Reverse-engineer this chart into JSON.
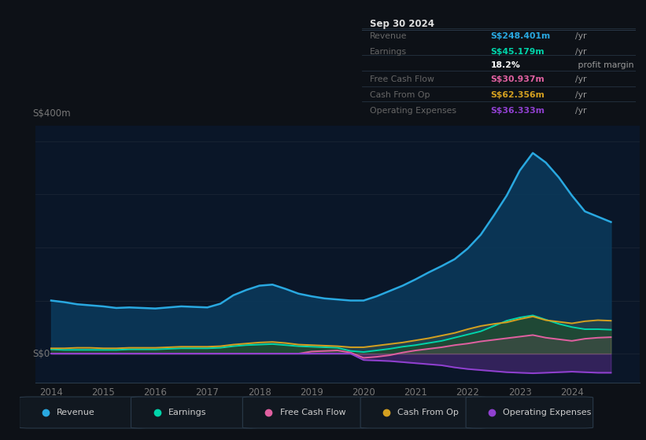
{
  "bg_color": "#0d1117",
  "plot_bg_color": "#0a1628",
  "grid_color": "#1a2535",
  "ylabel": "S$400m",
  "y0_label": "S$0",
  "years": [
    2014.0,
    2014.25,
    2014.5,
    2014.75,
    2015.0,
    2015.25,
    2015.5,
    2015.75,
    2016.0,
    2016.25,
    2016.5,
    2016.75,
    2017.0,
    2017.25,
    2017.5,
    2017.75,
    2018.0,
    2018.25,
    2018.5,
    2018.75,
    2019.0,
    2019.25,
    2019.5,
    2019.75,
    2020.0,
    2020.25,
    2020.5,
    2020.75,
    2021.0,
    2021.25,
    2021.5,
    2021.75,
    2022.0,
    2022.25,
    2022.5,
    2022.75,
    2023.0,
    2023.25,
    2023.5,
    2023.75,
    2024.0,
    2024.25,
    2024.5,
    2024.75
  ],
  "revenue": [
    100,
    97,
    93,
    91,
    89,
    86,
    87,
    86,
    85,
    87,
    89,
    88,
    87,
    94,
    110,
    120,
    128,
    130,
    122,
    113,
    108,
    104,
    102,
    100,
    100,
    108,
    118,
    128,
    140,
    153,
    165,
    178,
    198,
    224,
    260,
    298,
    345,
    378,
    360,
    332,
    298,
    268,
    258,
    248
  ],
  "earnings": [
    8,
    7,
    7,
    7,
    7,
    7,
    8,
    8,
    8,
    9,
    10,
    10,
    10,
    11,
    14,
    16,
    17,
    18,
    16,
    14,
    13,
    12,
    11,
    5,
    3,
    6,
    9,
    13,
    16,
    20,
    24,
    30,
    36,
    42,
    52,
    62,
    68,
    72,
    64,
    56,
    50,
    46,
    46,
    45
  ],
  "free_cash_flow": [
    0,
    0,
    0,
    0,
    0,
    0,
    0,
    0,
    0,
    0,
    0,
    0,
    0,
    0,
    0,
    0,
    0,
    0,
    0,
    0,
    4,
    5,
    6,
    2,
    -8,
    -6,
    -3,
    2,
    6,
    9,
    12,
    16,
    19,
    23,
    26,
    29,
    32,
    35,
    30,
    27,
    24,
    28,
    30,
    31
  ],
  "cash_from_op": [
    10,
    10,
    11,
    11,
    10,
    10,
    11,
    11,
    11,
    12,
    13,
    13,
    13,
    14,
    17,
    19,
    21,
    22,
    20,
    17,
    16,
    15,
    14,
    12,
    12,
    15,
    18,
    21,
    25,
    29,
    34,
    39,
    46,
    52,
    56,
    59,
    65,
    70,
    63,
    60,
    57,
    61,
    63,
    62
  ],
  "operating_expenses": [
    0,
    0,
    0,
    0,
    0,
    0,
    0,
    0,
    0,
    0,
    0,
    0,
    0,
    0,
    0,
    0,
    0,
    0,
    0,
    0,
    0,
    0,
    0,
    0,
    -12,
    -13,
    -14,
    -16,
    -18,
    -20,
    -22,
    -26,
    -29,
    -31,
    -33,
    -35,
    -36,
    -37,
    -36,
    -35,
    -34,
    -35,
    -36,
    -36
  ],
  "revenue_color": "#29a8e0",
  "earnings_color": "#00d4aa",
  "free_cash_flow_color": "#e060a0",
  "cash_from_op_color": "#d4a020",
  "operating_expenses_color": "#9040d0",
  "revenue_fill": "#0a3a5c",
  "earnings_fill": "#054030",
  "table_header": "Sep 30 2024",
  "table_rows": [
    {
      "label": "Revenue",
      "value": "S$248.401m",
      "unit": "/yr",
      "lc": "#666666",
      "vc": "#29a8e0"
    },
    {
      "label": "Earnings",
      "value": "S$45.179m",
      "unit": "/yr",
      "lc": "#666666",
      "vc": "#00d4aa"
    },
    {
      "label": "",
      "value": "18.2%",
      "unit": " profit margin",
      "lc": "#666666",
      "vc": "#ffffff"
    },
    {
      "label": "Free Cash Flow",
      "value": "S$30.937m",
      "unit": "/yr",
      "lc": "#666666",
      "vc": "#e060a0"
    },
    {
      "label": "Cash From Op",
      "value": "S$62.356m",
      "unit": "/yr",
      "lc": "#666666",
      "vc": "#d4a020"
    },
    {
      "label": "Operating Expenses",
      "value": "S$36.333m",
      "unit": "/yr",
      "lc": "#666666",
      "vc": "#9040d0"
    }
  ],
  "legend_items": [
    {
      "label": "Revenue",
      "color": "#29a8e0"
    },
    {
      "label": "Earnings",
      "color": "#00d4aa"
    },
    {
      "label": "Free Cash Flow",
      "color": "#e060a0"
    },
    {
      "label": "Cash From Op",
      "color": "#d4a020"
    },
    {
      "label": "Operating Expenses",
      "color": "#9040d0"
    }
  ],
  "xlim": [
    2013.7,
    2025.3
  ],
  "ylim": [
    -55,
    430
  ],
  "xticks": [
    2014,
    2015,
    2016,
    2017,
    2018,
    2019,
    2020,
    2021,
    2022,
    2023,
    2024
  ]
}
